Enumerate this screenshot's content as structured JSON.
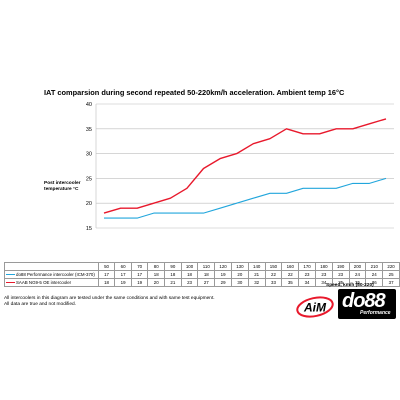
{
  "chart_data": {
    "type": "line",
    "title": "IAT comparsion during second repeated 50-220km/h acceleration. Ambient temp 16°C",
    "ylabel": "Post intercooler temperature °C",
    "xlabel": "Speed, km/h (50-220)",
    "categories": [
      "50",
      "60",
      "70",
      "80",
      "90",
      "100",
      "110",
      "120",
      "130",
      "140",
      "150",
      "160",
      "170",
      "180",
      "190",
      "200",
      "210",
      "220"
    ],
    "ylim": [
      15,
      40
    ],
    "yticks": [
      15,
      20,
      25,
      30,
      35,
      40
    ],
    "grid": true,
    "series": [
      {
        "name": "do88 Performance intercooler (ICM-370)",
        "color": "#22a6dc",
        "values": [
          17,
          17,
          17,
          18,
          18,
          18,
          18,
          19,
          20,
          21,
          22,
          22,
          23,
          23,
          23,
          24,
          24,
          25
        ]
      },
      {
        "name": "SAAB NG9-5 OE intercooler",
        "color": "#e8192c",
        "values": [
          18,
          19,
          19,
          20,
          21,
          23,
          27,
          29,
          30,
          32,
          33,
          35,
          34,
          34,
          35,
          35,
          36,
          37
        ]
      }
    ]
  },
  "footnote": {
    "line1": "All intercoolers in this diagram are tested under the same conditions and with same test equipment.",
    "line2": "All data are true and not modified."
  },
  "logos": {
    "aim": "AiM",
    "do88": "do88",
    "do88_sub": "Performance"
  }
}
